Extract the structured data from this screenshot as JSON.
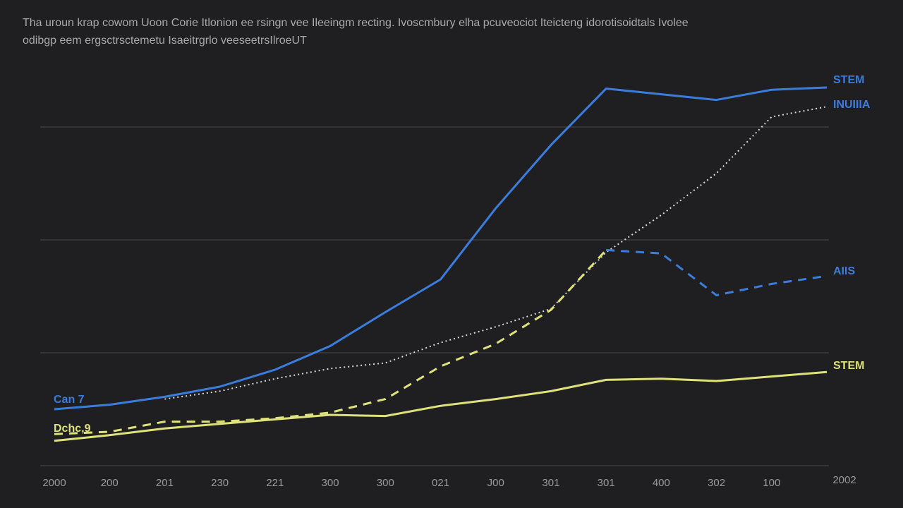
{
  "caption": {
    "line1": "Tha uroun krap cowom Uoon Corie Itlonion ee rsingn vee Ileeingm recting. Ivoscmbury elha pcuveociot Iteicteng idorotisoidtals Ivolee",
    "line2": "odibgp eem ergsctrsctemetu Isaeitrgrlo veeseetrsIlroeUT"
  },
  "colors": {
    "background": "#1f1f21",
    "blue": "#3b7ddd",
    "yellow": "#dfe27a",
    "white_dotted": "#d8d8d8",
    "grid": "#3d3d40"
  },
  "chart_data": {
    "type": "line",
    "title": "",
    "xlabel": "",
    "ylabel": "",
    "categories": [
      "2000",
      "200",
      "201",
      "230",
      "221",
      "300",
      "300",
      "021",
      "J00",
      "301",
      "301",
      "400",
      "302",
      "100",
      "2002"
    ],
    "ylim": [
      0,
      3.4
    ],
    "grid": true,
    "gridlines_y": [
      0,
      1,
      2,
      3
    ],
    "series": [
      {
        "name": "STEM",
        "style": "solid",
        "color": "#3b7ddd",
        "values": [
          0.5,
          0.54,
          0.61,
          0.7,
          0.85,
          1.06,
          1.36,
          1.65,
          2.28,
          2.84,
          3.34,
          3.29,
          3.24,
          3.33,
          3.35
        ]
      },
      {
        "name": "INUIIIA",
        "style": "dotted",
        "color": "#d8d8d8",
        "values": [
          null,
          null,
          0.59,
          0.66,
          0.77,
          0.86,
          0.91,
          1.09,
          1.23,
          1.39,
          1.89,
          2.22,
          2.59,
          3.09,
          3.18
        ]
      },
      {
        "name": "AIIS",
        "style": "dashed",
        "color": "#dfe27a",
        "color_after_index_10": "#3b7ddd",
        "values": [
          0.28,
          0.3,
          0.39,
          0.39,
          0.42,
          0.47,
          0.59,
          0.88,
          1.08,
          1.38,
          1.91,
          1.88,
          1.51,
          1.61,
          1.68
        ]
      },
      {
        "name": "STEM",
        "style": "solid",
        "color": "#dfe27a",
        "values": [
          0.22,
          0.27,
          0.33,
          0.37,
          0.41,
          0.45,
          0.44,
          0.53,
          0.59,
          0.66,
          0.76,
          0.77,
          0.75,
          0.79,
          0.83
        ]
      }
    ],
    "start_labels": [
      "Can 7",
      "Dchc,9"
    ]
  }
}
